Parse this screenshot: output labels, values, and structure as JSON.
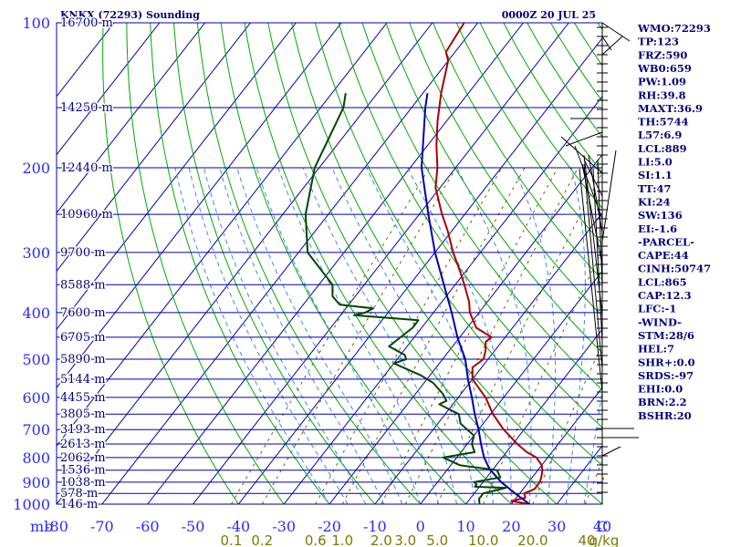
{
  "header": {
    "title": "KNKX (72293) Sounding",
    "time": "0000Z 20 JUL 25"
  },
  "chart_data": {
    "type": "line",
    "title": "KNKX (72293) Sounding",
    "xlabel": "",
    "ylabel": "mb",
    "x_unit_label": "C",
    "xlim": [
      -80,
      40
    ],
    "ylim_mb": [
      1000,
      100
    ],
    "y_scale": "log",
    "x_ticks": [
      -80,
      -70,
      -60,
      -50,
      -40,
      -30,
      -20,
      -10,
      0,
      10,
      20,
      30,
      40
    ],
    "x_tick_labels": [
      "-80",
      "-70",
      "-60",
      "-50",
      "-40",
      "-30",
      "-20",
      "-10",
      "0",
      "10",
      "20",
      "30",
      "40"
    ],
    "p_ticks": [
      1000,
      900,
      800,
      700,
      600,
      500,
      400,
      300,
      200,
      100
    ],
    "p_tick_labels": [
      "1000",
      "900",
      "800",
      "700",
      "600",
      "500",
      "400",
      "300",
      "200",
      "100"
    ],
    "height_levels": [
      {
        "p": 1000,
        "label": "146 m"
      },
      {
        "p": 950,
        "label": "578 m"
      },
      {
        "p": 900,
        "label": "1038 m"
      },
      {
        "p": 850,
        "label": "1536 m"
      },
      {
        "p": 800,
        "label": "2062 m"
      },
      {
        "p": 750,
        "label": "2613 m"
      },
      {
        "p": 700,
        "label": "3193 m"
      },
      {
        "p": 650,
        "label": "3805 m"
      },
      {
        "p": 600,
        "label": "4455 m"
      },
      {
        "p": 550,
        "label": "5144 m"
      },
      {
        "p": 500,
        "label": "5890 m"
      },
      {
        "p": 450,
        "label": "6705 m"
      },
      {
        "p": 400,
        "label": "7600 m"
      },
      {
        "p": 350,
        "label": "8588 m"
      },
      {
        "p": 300,
        "label": "9700 m"
      },
      {
        "p": 250,
        "label": "10960 m"
      },
      {
        "p": 200,
        "label": "12440 m"
      },
      {
        "p": 150,
        "label": "14250 m"
      },
      {
        "p": 100,
        "label": "16700 m"
      }
    ],
    "mixing_ratio_labels": [
      "0.1",
      "0.2",
      "0.6",
      "1.0",
      "2.0",
      "3.0",
      "5.0",
      "10.0",
      "20.0",
      "40",
      "g/kg"
    ],
    "mixing_ratio_values": [
      0.1,
      0.2,
      0.6,
      1.0,
      2.0,
      3.0,
      5.0,
      10.0,
      20.0,
      40
    ],
    "series": [
      {
        "name": "",
        "color": "#aa0000",
        "points": [
          [
            1000,
            24
          ],
          [
            985,
            19.5
          ],
          [
            970,
            22
          ],
          [
            950,
            21
          ],
          [
            930,
            22.5
          ],
          [
            900,
            22.5
          ],
          [
            880,
            22
          ],
          [
            850,
            21
          ],
          [
            830,
            20
          ],
          [
            800,
            17.5
          ],
          [
            780,
            14.5
          ],
          [
            750,
            11
          ],
          [
            700,
            5.5
          ],
          [
            650,
            0.5
          ],
          [
            600,
            -4
          ],
          [
            550,
            -10
          ],
          [
            520,
            -12
          ],
          [
            500,
            -11
          ],
          [
            480,
            -12
          ],
          [
            460,
            -13.5
          ],
          [
            450,
            -13
          ],
          [
            430,
            -18
          ],
          [
            400,
            -22
          ],
          [
            380,
            -24
          ],
          [
            350,
            -28
          ],
          [
            330,
            -31
          ],
          [
            300,
            -36
          ],
          [
            270,
            -41
          ],
          [
            250,
            -45
          ],
          [
            220,
            -51
          ],
          [
            200,
            -54
          ],
          [
            180,
            -58
          ],
          [
            160,
            -62
          ],
          [
            140,
            -66
          ],
          [
            120,
            -70
          ],
          [
            115,
            -72
          ],
          [
            100,
            -73
          ]
        ]
      },
      {
        "name": "",
        "color": "#0000aa",
        "points": [
          [
            1000,
            24
          ],
          [
            950,
            19
          ],
          [
            900,
            14
          ],
          [
            860,
            10.5
          ],
          [
            850,
            9.5
          ],
          [
            800,
            6
          ],
          [
            750,
            3
          ],
          [
            700,
            0
          ],
          [
            650,
            -3.5
          ],
          [
            600,
            -7
          ],
          [
            550,
            -11
          ],
          [
            500,
            -15
          ],
          [
            450,
            -20.5
          ],
          [
            400,
            -26
          ],
          [
            350,
            -32.5
          ],
          [
            300,
            -40
          ],
          [
            250,
            -48
          ],
          [
            200,
            -57.5
          ],
          [
            150,
            -67
          ],
          [
            140,
            -69
          ]
        ]
      },
      {
        "name": "",
        "color": "#004400",
        "points": [
          [
            1000,
            13
          ],
          [
            975,
            12
          ],
          [
            950,
            12
          ],
          [
            925,
            16
          ],
          [
            920,
            9
          ],
          [
            910,
            9
          ],
          [
            900,
            8
          ],
          [
            880,
            13
          ],
          [
            850,
            11
          ],
          [
            830,
            2
          ],
          [
            800,
            -3
          ],
          [
            780,
            3
          ],
          [
            750,
            1
          ],
          [
            720,
            0
          ],
          [
            700,
            -2.5
          ],
          [
            680,
            -5
          ],
          [
            650,
            -7
          ],
          [
            635,
            -10
          ],
          [
            620,
            -13
          ],
          [
            610,
            -12
          ],
          [
            590,
            -14
          ],
          [
            560,
            -18
          ],
          [
            540,
            -22
          ],
          [
            510,
            -30
          ],
          [
            500,
            -28
          ],
          [
            490,
            -29
          ],
          [
            470,
            -34
          ],
          [
            450,
            -33
          ],
          [
            430,
            -32
          ],
          [
            415,
            -32
          ],
          [
            405,
            -47
          ],
          [
            400,
            -45
          ],
          [
            392,
            -44
          ],
          [
            385,
            -52
          ],
          [
            370,
            -55
          ],
          [
            350,
            -57
          ],
          [
            300,
            -68
          ],
          [
            250,
            -75
          ],
          [
            200,
            -81
          ],
          [
            150,
            -85
          ],
          [
            140,
            -87
          ]
        ]
      }
    ],
    "wind_profile_label": "",
    "grid": true
  },
  "indices": [
    "WMO:72293",
    "TP:123",
    "FRZ:590",
    "WB0:659",
    "PW:1.09",
    "RH:39.8",
    "MAXT:36.9",
    "TH:5744",
    "L57:6.9",
    "LCL:889",
    "LI:5.0",
    "SI:1.1",
    "TT:47",
    "KI:24",
    "SW:136",
    "EI:-1.6",
    "-PARCEL-",
    "CAPE:44",
    "CINH:50747",
    "LCL:865",
    "CAP:12.3",
    "LFC:-1",
    "-WIND-",
    "STM:28/6",
    "HEL:7",
    "SHR+:0.0",
    "SRDS:-97",
    "EHI:0.0",
    "BRN:2.2",
    "BSHR:20"
  ],
  "colors": {
    "isobar": "#0000aa",
    "isotherm": "#0000aa",
    "dry_adiabat": "#00aa00",
    "moist_adiabat": "#4488dd",
    "mixing_ratio": "#666600",
    "axis_text": "#2b2bff",
    "label_text": "#00007a"
  }
}
